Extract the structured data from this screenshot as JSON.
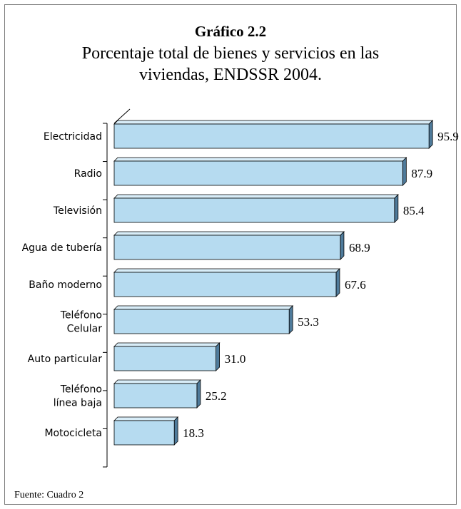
{
  "title": "Gráfico 2.2",
  "subtitle": "Porcentaje total de bienes y servicios en las viviendas, ENDSSR 2004.",
  "source": "Fuente: Cuadro 2",
  "colors": {
    "bar_front": "#b6dbf0",
    "bar_top": "#d8edf8",
    "bar_side": "#4f7b9b",
    "axis": "#000000"
  },
  "chart_data": {
    "type": "bar",
    "orientation": "horizontal",
    "style": "3d",
    "title": "Gráfico 2.2",
    "subtitle": "Porcentaje total de bienes y servicios en las viviendas, ENDSSR 2004.",
    "categories": [
      [
        "Electricidad"
      ],
      [
        "Radio"
      ],
      [
        "Televisión"
      ],
      [
        "Agua de tubería"
      ],
      [
        "Baño moderno"
      ],
      [
        "Teléfono",
        "Celular"
      ],
      [
        "Auto particular"
      ],
      [
        "Teléfono",
        "línea baja"
      ],
      [
        "Motocicleta"
      ]
    ],
    "values": [
      95.9,
      87.9,
      85.4,
      68.9,
      67.6,
      53.3,
      31.0,
      25.2,
      18.3
    ],
    "value_labels": [
      "95.9",
      "87.9",
      "85.4",
      "68.9",
      "67.6",
      "53.3",
      "31.0",
      "25.2",
      "18.3"
    ],
    "xlim": [
      0,
      100
    ],
    "grid": false,
    "legend": "none"
  }
}
